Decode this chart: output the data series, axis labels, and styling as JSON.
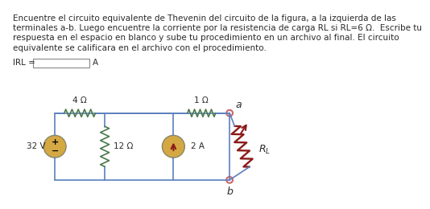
{
  "title_line1": "Encuentre el circuito equivalente de Thevenin del circuito de la figura, a la izquierda de las",
  "title_line2": "terminales a-b. Luego encuentre la corriente por la resistencia de carga RL si RL=6 Ω.  Escribe tu",
  "title_line3": "respuesta en el espacio en blanco y sube tu procedimiento en un archivo al final. El circuito",
  "title_line4": "equivalente se calificara en el archivo con el procedimiento.",
  "irl_label": "IRL =",
  "irl_unit": "A",
  "bg_color": "#ffffff",
  "text_color": "#2a2a2a",
  "wire_color": "#5b7fbe",
  "resistor_color": "#4a7a4a",
  "voltage_source_color": "#d4a843",
  "current_source_color": "#d4a843",
  "rl_color": "#8B1a1a",
  "rl_arrow_color": "#8B1a1a",
  "terminal_color": "#cc6666",
  "v_source_label": "32 V",
  "r1_label": "4 Ω",
  "r2_label": "12 Ω",
  "r3_label": "1 Ω",
  "i_source_label": "2 A",
  "node_a": "a",
  "node_b": "b"
}
